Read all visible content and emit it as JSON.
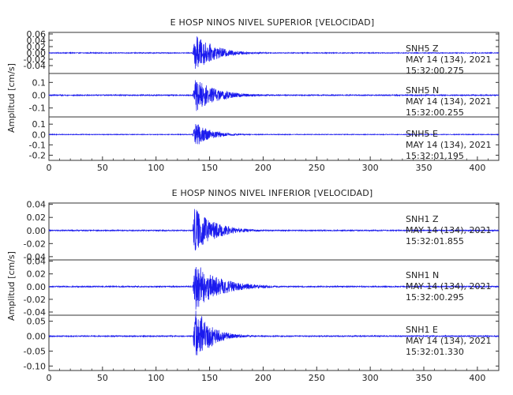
{
  "chart_data": [
    {
      "type": "line",
      "title": "E HOSP NINOS NIVEL SUPERIOR [VELOCIDAD]",
      "ylabel": "Amplitud [cm/s]",
      "xlim": [
        0,
        420
      ],
      "xticks": [
        0,
        50,
        100,
        150,
        200,
        250,
        300,
        350,
        400
      ],
      "grid": false,
      "panels": [
        {
          "component": "SNH5   Z",
          "date": "MAY 14 (134), 2021",
          "time": "15:32:00.275",
          "ylim": [
            -0.065,
            0.065
          ],
          "yticks": [
            "0.06",
            "0.04",
            "0.02",
            "0.00",
            "-0.02",
            "-0.04"
          ],
          "ytick_values": [
            0.06,
            0.04,
            0.02,
            0.0,
            -0.02,
            -0.04
          ],
          "event_onset_s": 134,
          "peak_time_s": 137,
          "peak_amplitude": 0.058,
          "noise_level": 0.0012,
          "decay_s": 18
        },
        {
          "component": "SNH5   N",
          "date": "MAY 14 (134), 2021",
          "time": "15:32:00.255",
          "ylim": [
            -0.17,
            0.17
          ],
          "yticks": [
            "0.1",
            "0.0",
            "-0.1"
          ],
          "ytick_values": [
            0.1,
            0.0,
            -0.1
          ],
          "event_onset_s": 134,
          "peak_time_s": 137,
          "peak_amplitude": 0.13,
          "noise_level": 0.004,
          "decay_s": 20
        },
        {
          "component": "SNH5   E",
          "date": "MAY 14 (134), 2021",
          "time": "15:32:01.195",
          "ylim": [
            -0.25,
            0.17
          ],
          "yticks": [
            "0.1",
            "0.0",
            "-0.1",
            "-0.2"
          ],
          "ytick_values": [
            0.1,
            0.0,
            -0.1,
            -0.2
          ],
          "event_onset_s": 134,
          "peak_time_s": 137,
          "peak_amplitude": 0.12,
          "noise_level": 0.003,
          "decay_s": 14
        }
      ]
    },
    {
      "type": "line",
      "title": "E HOSP NINOS NIVEL INFERIOR [VELOCIDAD]",
      "ylabel": "Amplitud [cm/s]",
      "xlim": [
        0,
        420
      ],
      "xticks": [
        0,
        50,
        100,
        150,
        200,
        250,
        300,
        350,
        400
      ],
      "grid": false,
      "panels": [
        {
          "component": "SNH1   Z",
          "date": "MAY 14 (134), 2021",
          "time": "15:32:01.855",
          "ylim": [
            -0.045,
            0.042
          ],
          "yticks": [
            "0.04",
            "0.02",
            "0.00",
            "-0.02",
            "-0.04"
          ],
          "ytick_values": [
            0.04,
            0.02,
            0.0,
            -0.02,
            -0.04
          ],
          "event_onset_s": 134,
          "peak_time_s": 136,
          "peak_amplitude": 0.036,
          "noise_level": 0.0008,
          "decay_s": 18
        },
        {
          "component": "SNH1   N",
          "date": "MAY 14 (134), 2021",
          "time": "15:32:00.295",
          "ylim": [
            -0.045,
            0.042
          ],
          "yticks": [
            "0.04",
            "0.02",
            "0.00",
            "-0.02",
            "-0.04"
          ],
          "ytick_values": [
            0.04,
            0.02,
            0.0,
            -0.02,
            -0.04
          ],
          "event_onset_s": 134,
          "peak_time_s": 137,
          "peak_amplitude": 0.038,
          "noise_level": 0.0009,
          "decay_s": 22
        },
        {
          "component": "SNH1   E",
          "date": "MAY 14 (134), 2021",
          "time": "15:32:01.330",
          "ylim": [
            -0.115,
            0.07
          ],
          "yticks": [
            "0.05",
            "0.00",
            "-0.05",
            "-0.10"
          ],
          "ytick_values": [
            0.05,
            0.0,
            -0.05,
            -0.1
          ],
          "event_onset_s": 134,
          "peak_time_s": 137,
          "peak_amplitude": 0.1,
          "noise_level": 0.0018,
          "decay_s": 14
        }
      ]
    }
  ],
  "colors": {
    "trace": "#1a1aee",
    "axis": "#333333",
    "text": "#222222"
  }
}
